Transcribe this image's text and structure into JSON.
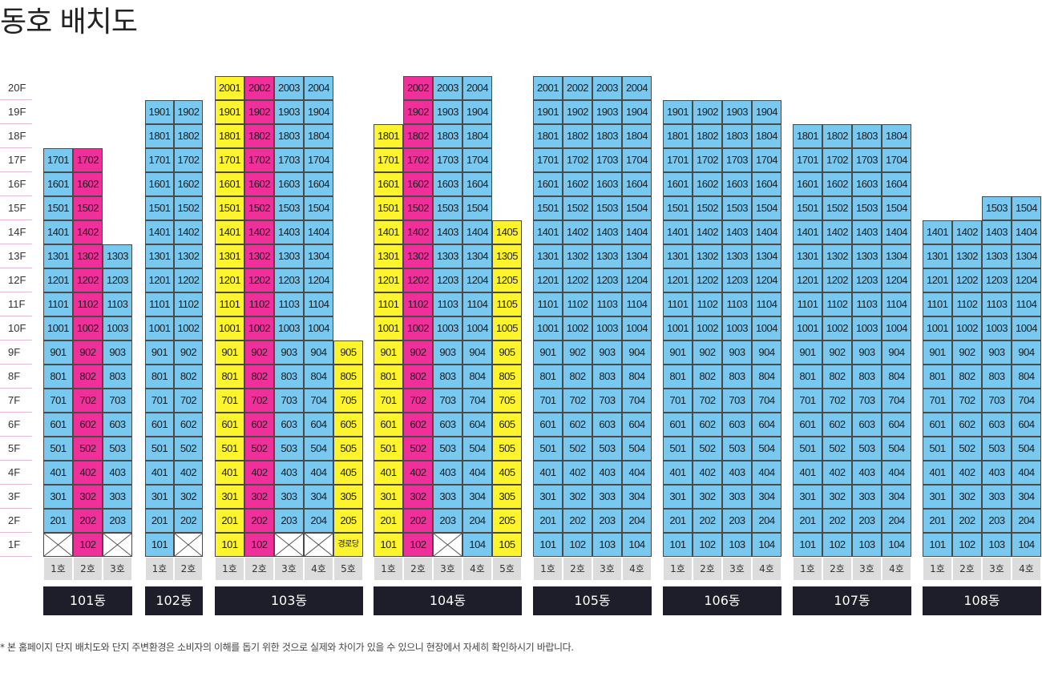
{
  "title": "동호 배치도",
  "floor_labels": [
    "20F",
    "19F",
    "18F",
    "17F",
    "16F",
    "15F",
    "14F",
    "13F",
    "12F",
    "11F",
    "10F",
    "9F",
    "8F",
    "7F",
    "6F",
    "5F",
    "4F",
    "3F",
    "2F",
    "1F"
  ],
  "colors": {
    "blue": "#78c8f0",
    "pink": "#f0309a",
    "yellow": "#fdf32e",
    "white": "#ffffff",
    "building_label_bg": "#1e1e2a",
    "line_label_bg": "#dcdcdc"
  },
  "unit_color_legend": {
    "blue": "general unit",
    "pink": "highlighted line",
    "yellow": "highlighted line (alt)",
    "crossed": "no unit"
  },
  "buildings": [
    {
      "name": "101동",
      "lines": [
        {
          "label": "1호",
          "num": 1,
          "top": 17,
          "color": "blue",
          "first_floor": "none"
        },
        {
          "label": "2호",
          "num": 2,
          "top": 17,
          "color": "pink"
        },
        {
          "label": "3호",
          "num": 3,
          "top": 13,
          "color": "blue",
          "first_floor": "none"
        }
      ]
    },
    {
      "name": "102동",
      "lines": [
        {
          "label": "1호",
          "num": 1,
          "top": 19,
          "color": "blue"
        },
        {
          "label": "2호",
          "num": 2,
          "top": 19,
          "color": "blue",
          "first_floor": "none"
        }
      ]
    },
    {
      "name": "103동",
      "lines": [
        {
          "label": "1호",
          "num": 1,
          "top": 20,
          "color": "yellow"
        },
        {
          "label": "2호",
          "num": 2,
          "top": 20,
          "color": "pink"
        },
        {
          "label": "3호",
          "num": 3,
          "top": 20,
          "color": "blue",
          "first_floor": "none"
        },
        {
          "label": "4호",
          "num": 4,
          "top": 20,
          "color": "blue",
          "first_floor": "none"
        },
        {
          "label": "5호",
          "num": 5,
          "top": 9,
          "color": "yellow",
          "first_floor_text": "경로당"
        }
      ]
    },
    {
      "name": "104동",
      "lines": [
        {
          "label": "1호",
          "num": 1,
          "top": 18,
          "color": "yellow"
        },
        {
          "label": "2호",
          "num": 2,
          "top": 20,
          "color": "pink"
        },
        {
          "label": "3호",
          "num": 3,
          "top": 20,
          "color": "blue",
          "first_floor": "none"
        },
        {
          "label": "4호",
          "num": 4,
          "top": 20,
          "color": "blue"
        },
        {
          "label": "5호",
          "num": 5,
          "top": 14,
          "color": "yellow"
        }
      ]
    },
    {
      "name": "105동",
      "lines": [
        {
          "label": "1호",
          "num": 1,
          "top": 20,
          "color": "blue"
        },
        {
          "label": "2호",
          "num": 2,
          "top": 20,
          "color": "blue"
        },
        {
          "label": "3호",
          "num": 3,
          "top": 20,
          "color": "blue"
        },
        {
          "label": "4호",
          "num": 4,
          "top": 20,
          "color": "blue"
        }
      ]
    },
    {
      "name": "106동",
      "lines": [
        {
          "label": "1호",
          "num": 1,
          "top": 19,
          "color": "blue"
        },
        {
          "label": "2호",
          "num": 2,
          "top": 19,
          "color": "blue"
        },
        {
          "label": "3호",
          "num": 3,
          "top": 19,
          "color": "blue"
        },
        {
          "label": "4호",
          "num": 4,
          "top": 19,
          "color": "blue"
        }
      ]
    },
    {
      "name": "107동",
      "lines": [
        {
          "label": "1호",
          "num": 1,
          "top": 18,
          "color": "blue"
        },
        {
          "label": "2호",
          "num": 2,
          "top": 18,
          "color": "blue"
        },
        {
          "label": "3호",
          "num": 3,
          "top": 18,
          "color": "blue"
        },
        {
          "label": "4호",
          "num": 4,
          "top": 18,
          "color": "blue"
        }
      ]
    },
    {
      "name": "108동",
      "lines": [
        {
          "label": "1호",
          "num": 1,
          "top": 14,
          "color": "blue"
        },
        {
          "label": "2호",
          "num": 2,
          "top": 14,
          "color": "blue"
        },
        {
          "label": "3호",
          "num": 3,
          "top": 15,
          "color": "blue"
        },
        {
          "label": "4호",
          "num": 4,
          "top": 15,
          "color": "blue"
        }
      ]
    }
  ],
  "disclaimer": "* 본 홈페이지 단지 배치도와 단지 주변환경은 소비자의 이해를 돕기 위한 것으로 실제와 차이가 있을 수 있으니 현장에서 자세히 확인하시기 바랍니다."
}
